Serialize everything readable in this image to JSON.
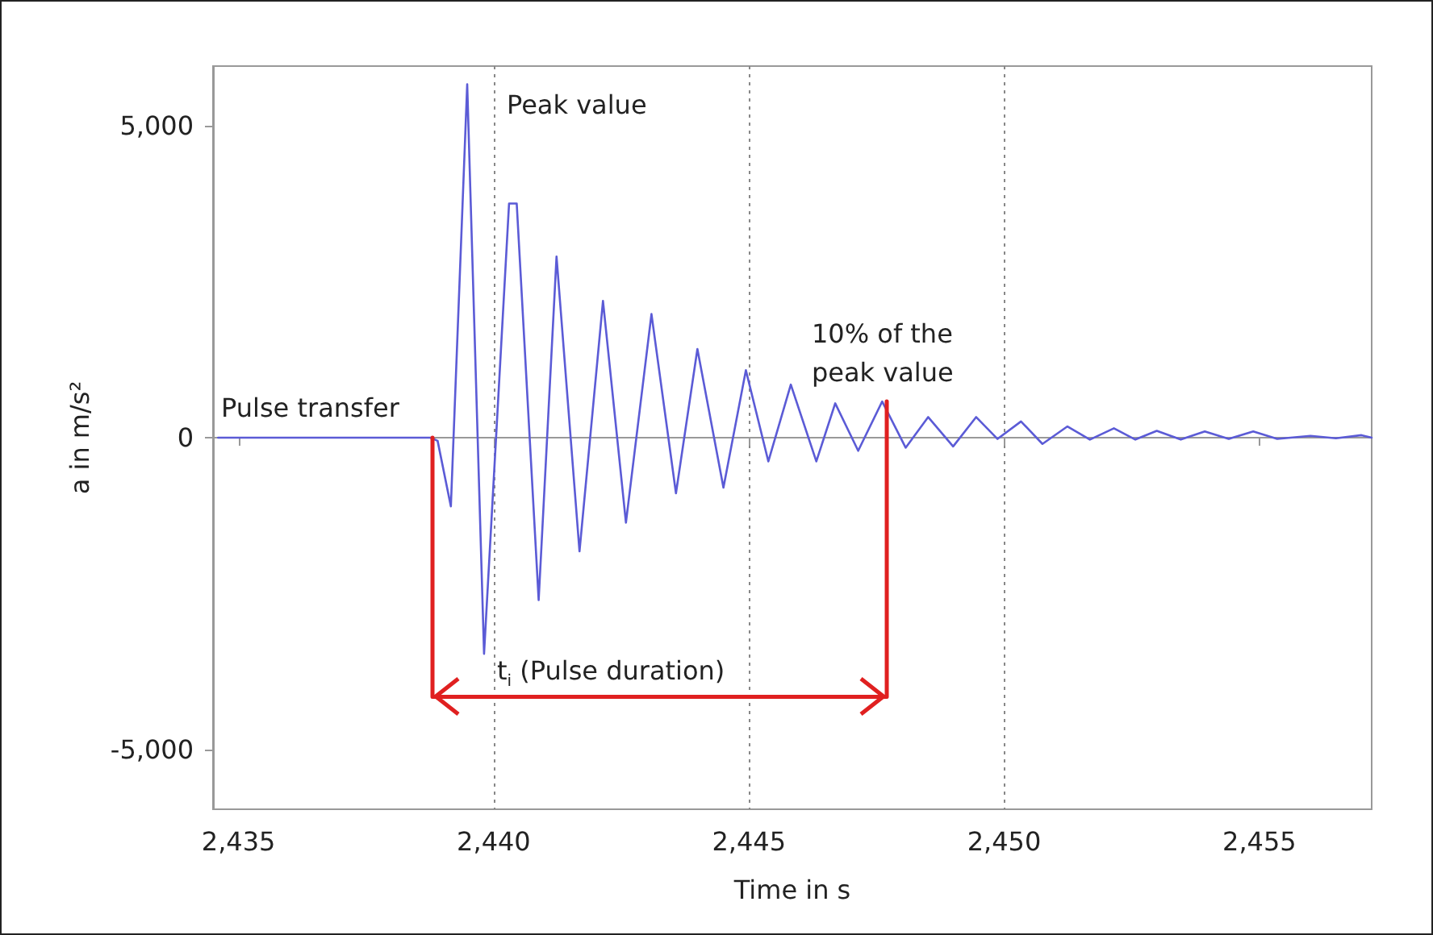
{
  "chart_data": {
    "type": "line",
    "xlabel": "Time in s",
    "ylabel": "a in m/s²",
    "xlim": [
      2434.5,
      2457.2
    ],
    "ylim": [
      -5950,
      5950
    ],
    "xticks": [
      {
        "value": 2435,
        "label": "2,435"
      },
      {
        "value": 2440,
        "label": "2,440"
      },
      {
        "value": 2445,
        "label": "2,445"
      },
      {
        "value": 2450,
        "label": "2,450"
      },
      {
        "value": 2455,
        "label": "2,455"
      }
    ],
    "yticks": [
      {
        "value": -5000,
        "label": "-5,000"
      },
      {
        "value": 0,
        "label": "0"
      },
      {
        "value": 5000,
        "label": "5,000"
      }
    ],
    "grid": true,
    "marker": "none",
    "line_style": "solid",
    "series": [
      {
        "color": "#5b5bd6",
        "x": [
          2434.6,
          2438.76,
          2438.9,
          2439.16,
          2439.48,
          2439.81,
          2440.3,
          2440.45,
          2440.88,
          2441.23,
          2441.68,
          2442.14,
          2442.59,
          2443.09,
          2443.57,
          2443.99,
          2444.5,
          2444.94,
          2445.38,
          2445.82,
          2446.32,
          2446.69,
          2447.14,
          2447.61,
          2448.07,
          2448.51,
          2449.0,
          2449.45,
          2449.87,
          2450.33,
          2450.75,
          2451.24,
          2451.68,
          2452.15,
          2452.57,
          2452.99,
          2453.46,
          2453.93,
          2454.4,
          2454.88,
          2455.35,
          2456.0,
          2456.5,
          2457.0,
          2457.2
        ],
        "values": [
          0,
          0,
          -50,
          -1100,
          5660,
          -3460,
          3750,
          3750,
          -2600,
          2900,
          -1820,
          2190,
          -1360,
          1980,
          -890,
          1420,
          -800,
          1080,
          -380,
          850,
          -380,
          550,
          -210,
          580,
          -160,
          330,
          -140,
          330,
          -20,
          260,
          -100,
          180,
          -30,
          150,
          -30,
          110,
          -30,
          100,
          -20,
          100,
          -20,
          30,
          -10,
          40,
          0
        ]
      },
      {
        "color": "#e02020",
        "x": [
          2438.8,
          2438.8,
          2447.7,
          2447.7
        ],
        "values": [
          0,
          -4150,
          -4150,
          580
        ]
      }
    ],
    "annotations": [
      "Peak value",
      "10% of the\npeak value",
      "Pulse transfer",
      "t$_{i}$ (Pulse duration)"
    ]
  }
}
